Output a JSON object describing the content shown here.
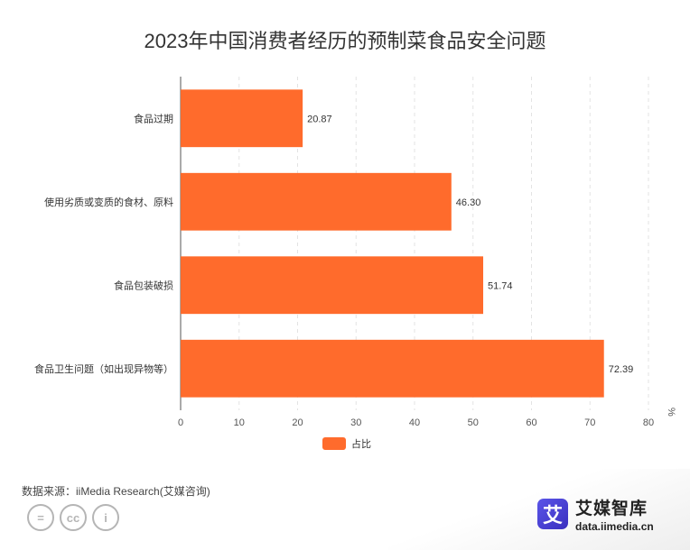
{
  "chart_data": {
    "type": "bar",
    "orientation": "horizontal",
    "title": "2023年中国消费者经历的预制菜食品安全问题",
    "categories": [
      "食品过期",
      "使用劣质或变质的食材、原料",
      "食品包装破损",
      "食品卫生问题（如出现异物等）"
    ],
    "series": [
      {
        "name": "占比",
        "values": [
          20.87,
          46.3,
          51.74,
          72.39
        ]
      }
    ],
    "value_labels": [
      "20.87",
      "46.30",
      "51.74",
      "72.39"
    ],
    "xunit": "%",
    "xlim": [
      0,
      80
    ],
    "xticks": [
      0,
      10,
      20,
      30,
      40,
      50,
      60,
      70,
      80
    ],
    "grid": "vertical dashed",
    "legend": "bottom-center",
    "bar_color": "#ff6b2c"
  },
  "source": "数据来源：iiMedia Research(艾媒咨询)",
  "brand": {
    "logo_char": "艾",
    "name": "艾媒智库",
    "url": "data.iimedia.cn"
  },
  "license_icons": [
    "=",
    "cc",
    "i"
  ]
}
